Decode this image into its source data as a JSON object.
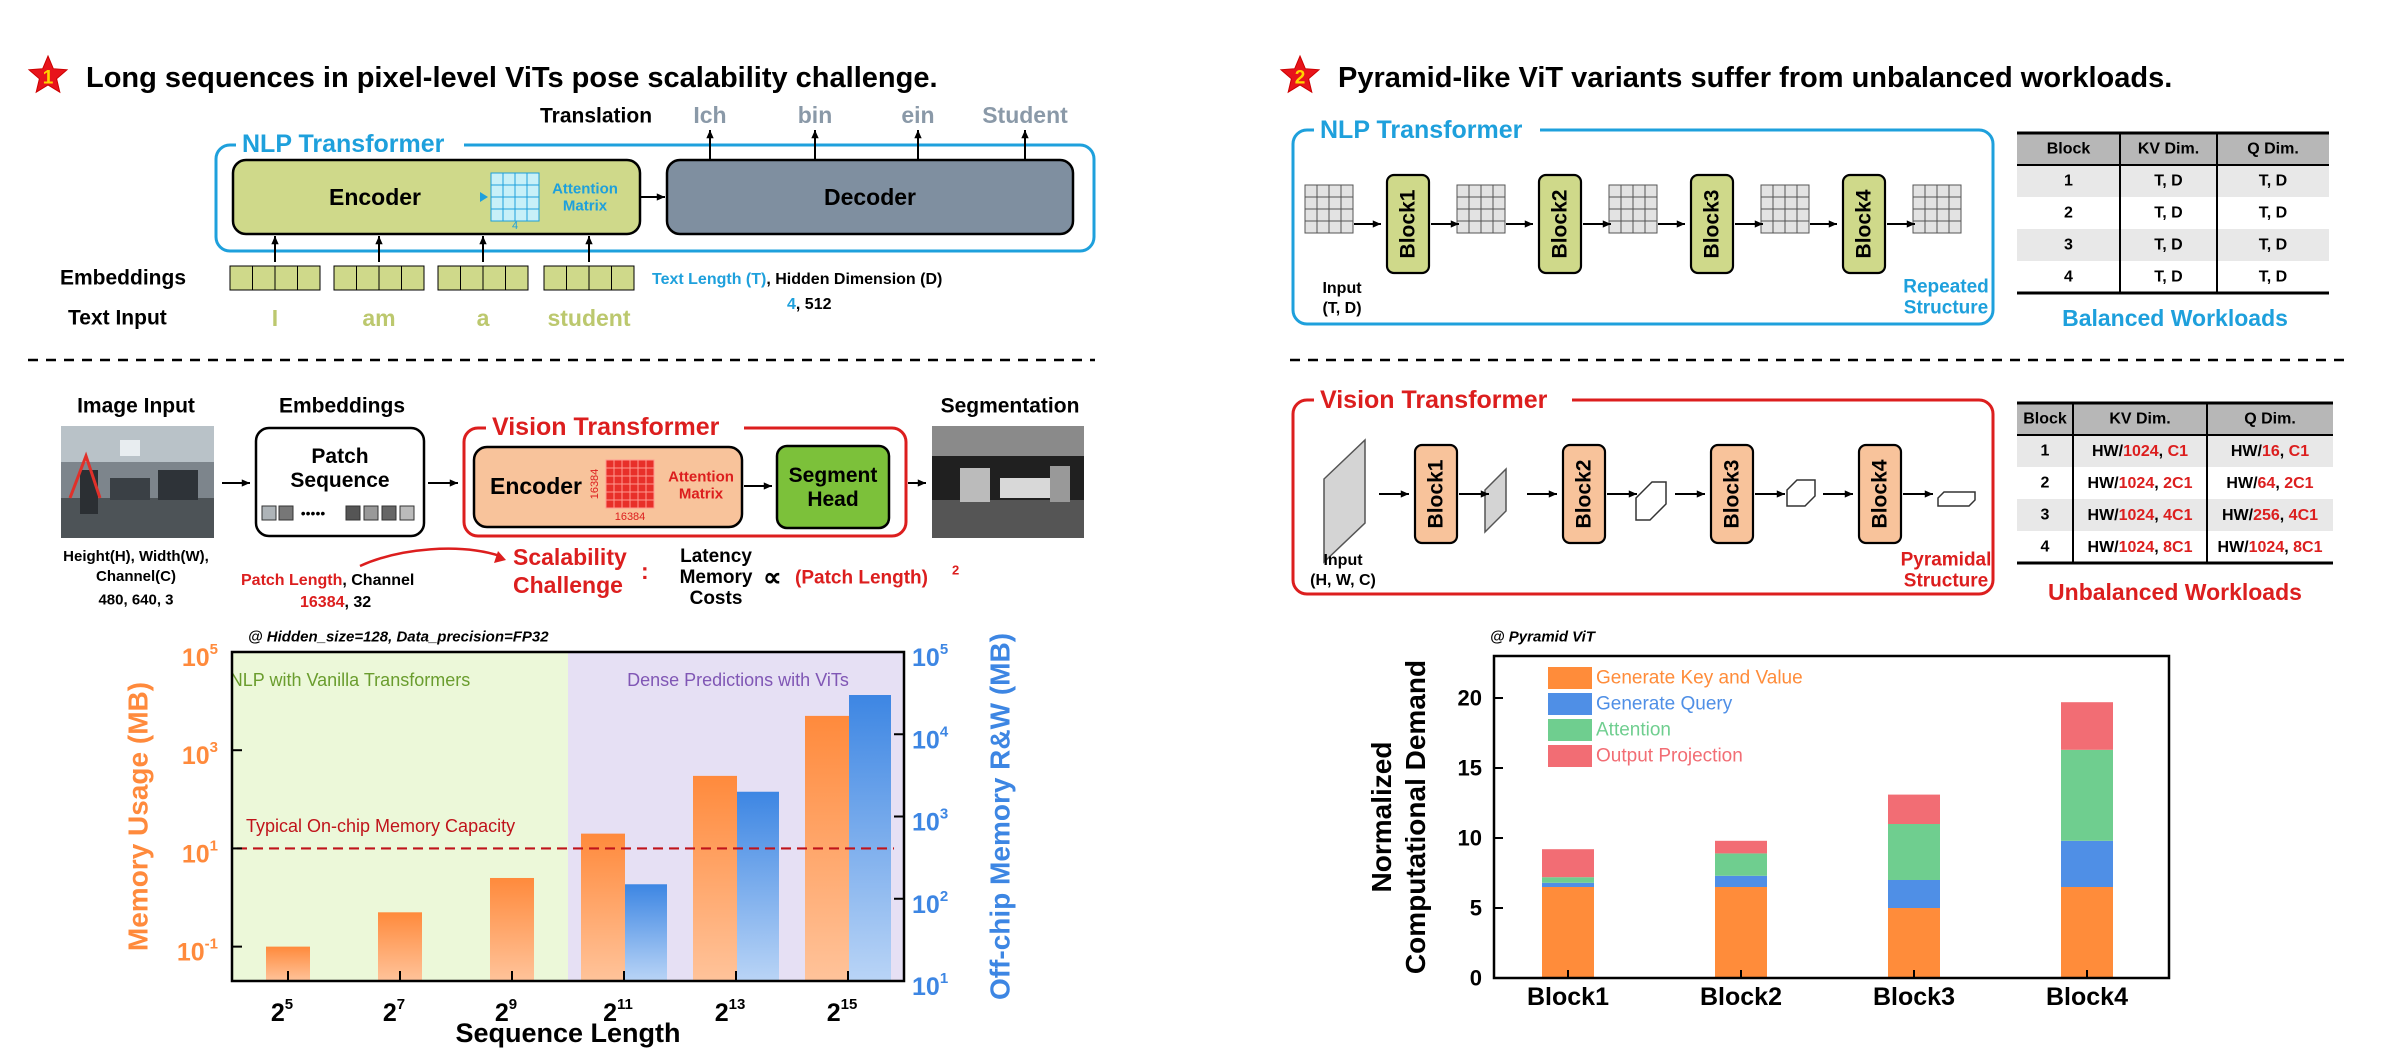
{
  "colors": {
    "blue": "#1ea0dc",
    "red": "#dc1e1e",
    "green_box": "#cfd98a",
    "slate": "#7f8fa0",
    "orange": "#ff8a3c",
    "chartblue": "#3d86e3",
    "kv": "#ff8c3a",
    "q": "#4f8fe6",
    "att": "#6fce8f",
    "op": "#f26d74"
  },
  "left": {
    "badge": "1",
    "title": "Long sequences in pixel-level ViTs pose scalability challenge.",
    "nlp": {
      "label": "NLP Transformer",
      "translation": "Translation",
      "outputs": [
        "Ich",
        "bin",
        "ein",
        "Student"
      ],
      "encoder": "Encoder",
      "attention": "Attention\nMatrix",
      "att_dim": "4",
      "decoder": "Decoder",
      "embeddings": "Embeddings",
      "text_input": "Text Input",
      "words": [
        "I",
        "am",
        "a",
        "student"
      ],
      "text_length": "Text Length (T)",
      "hidden_dim": ", Hidden Dimension (D)",
      "t_val": "4",
      "d_val": ", 512"
    },
    "vit": {
      "image_input": "Image Input",
      "embeddings": "Embeddings",
      "patch_seq": "Patch\nSequence",
      "label": "Vision Transformer",
      "encoder": "Encoder",
      "att_dim": "16384",
      "attention": "Attention\nMatrix",
      "segment_head": "Segment\nHead",
      "segmentation": "Segmentation",
      "hwc": "Height(H), Width(W),\nChannel(C)",
      "hwc_vals": "480, 640, 3",
      "patch_len": "Patch Length",
      "channel": ", Channel",
      "pl_val": "16384",
      "ch_val": ", 32",
      "scal": "Scalability\nChallenge",
      "colon": ":",
      "costs": "Latency\nMemory\nCosts",
      "propto": "∝",
      "formula": "(Patch Length)",
      "exp": "2"
    }
  },
  "right": {
    "badge": "2",
    "title": "Pyramid-like ViT variants suffer from unbalanced workloads.",
    "nlp": {
      "label": "NLP Transformer",
      "blocks": [
        "Block1",
        "Block2",
        "Block3",
        "Block4"
      ],
      "input": "Input\n(T, D)",
      "repeated": "Repeated\nStructure",
      "caption": "Balanced Workloads"
    },
    "nlp_table": {
      "headers": [
        "Block",
        "KV Dim.",
        "Q Dim."
      ],
      "rows": [
        [
          "1",
          "T, D",
          "T, D"
        ],
        [
          "2",
          "T, D",
          "T, D"
        ],
        [
          "3",
          "T, D",
          "T, D"
        ],
        [
          "4",
          "T, D",
          "T, D"
        ]
      ]
    },
    "vit": {
      "label": "Vision Transformer",
      "blocks": [
        "Block1",
        "Block2",
        "Block3",
        "Block4"
      ],
      "input": "Input\n(H, W, C)",
      "pyramidal": "Pyramidal\nStructure",
      "caption": "Unbalanced Workloads"
    },
    "vit_table": {
      "headers": [
        "Block",
        "KV Dim.",
        "Q Dim."
      ],
      "rows": [
        [
          "1",
          "HW/|1024|, C1",
          "HW/|16|, C1"
        ],
        [
          "2",
          "HW/|1024|, 2C1",
          "HW/|64|, 2C1"
        ],
        [
          "3",
          "HW/|1024|, 4C1",
          "HW/|256|, 4C1"
        ],
        [
          "4",
          "HW/|1024|, 8C1",
          "HW/|1024|, 8C1"
        ]
      ]
    }
  },
  "chart_data": [
    {
      "type": "bar",
      "note": "@ Hidden_size=128, Data_precision=FP32",
      "xlabel": "Sequence Length",
      "ylabel": "Memory Usage (MB)",
      "y2label": "Off-chip Memory R&W (MB)",
      "categories": [
        "2^5",
        "2^7",
        "2^9",
        "2^11",
        "2^13",
        "2^15"
      ],
      "yscale": "log",
      "ylim": [
        0.02,
        100000
      ],
      "y2lim": [
        10,
        100000
      ],
      "yticks": [
        "10^-1",
        "10^1",
        "10^3",
        "10^5"
      ],
      "y2ticks": [
        "10^1",
        "10^2",
        "10^3",
        "10^4",
        "10^5"
      ],
      "regions": [
        "NLP with Vanilla Transformers",
        "Dense Predictions with ViTs"
      ],
      "threshold": {
        "label": "Typical On-chip Memory Capacity",
        "value": 10
      },
      "series": [
        {
          "name": "Memory Usage (MB)",
          "values": [
            0.1,
            0.5,
            2.5,
            20,
            300,
            5000
          ]
        },
        {
          "name": "Off-chip Memory R&W (MB)",
          "values": [
            null,
            null,
            null,
            150,
            2000,
            30000
          ]
        }
      ]
    },
    {
      "type": "bar",
      "stacked": true,
      "note": "@ Pyramid ViT",
      "ylabel": "Normalized\nComputational Demand",
      "categories": [
        "Block1",
        "Block2",
        "Block3",
        "Block4"
      ],
      "ylim": [
        0,
        23
      ],
      "yticks": [
        "0",
        "5",
        "10",
        "15",
        "20"
      ],
      "series": [
        {
          "name": "Generate Key and Value",
          "values": [
            6.5,
            6.5,
            5.0,
            6.5
          ]
        },
        {
          "name": "Generate Query",
          "values": [
            0.3,
            0.8,
            2.0,
            3.3
          ]
        },
        {
          "name": "Attention",
          "values": [
            0.4,
            1.6,
            4.0,
            6.5
          ]
        },
        {
          "name": "Output Projection",
          "values": [
            2.0,
            0.9,
            2.1,
            3.4
          ]
        }
      ]
    }
  ]
}
